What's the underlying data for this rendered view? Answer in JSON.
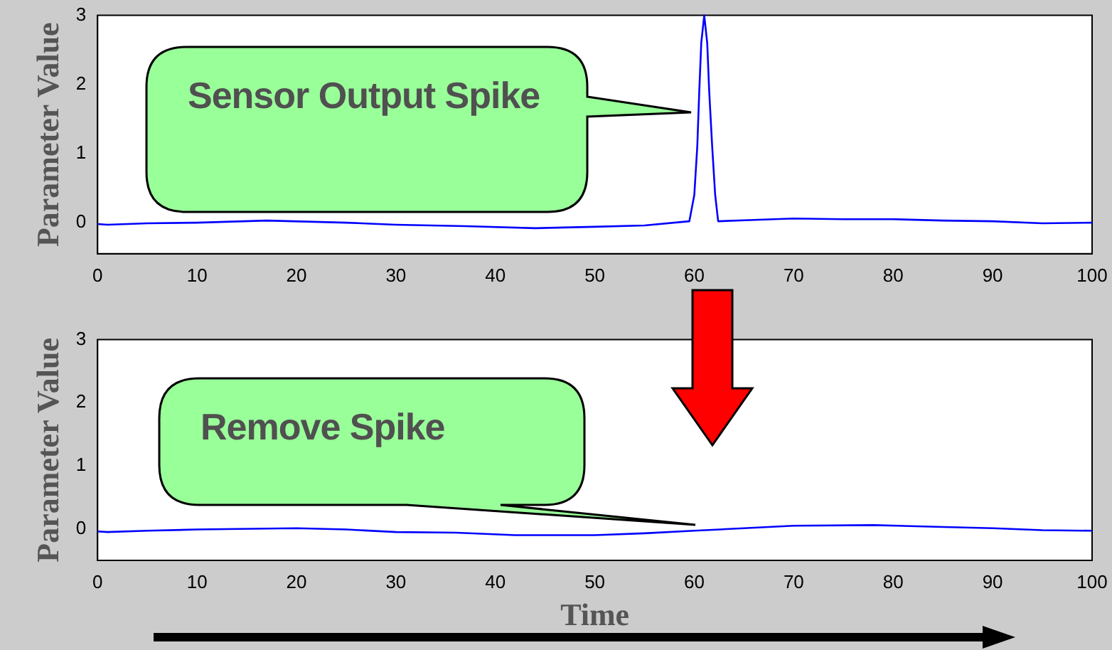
{
  "chart_data": [
    {
      "type": "line",
      "ylabel": "Parameter Value",
      "x": [
        0,
        1,
        5,
        10,
        17,
        25,
        30,
        37,
        44,
        50,
        55,
        59.5,
        60,
        60.3,
        60.5,
        60.7,
        61,
        61.3,
        61.5,
        61.8,
        62.1,
        62.4,
        66,
        70,
        75,
        80,
        85,
        90,
        95,
        100
      ],
      "series": [
        {
          "color": "#0000ff",
          "values": [
            -0.02,
            -0.03,
            -0.01,
            0,
            0.03,
            0,
            -0.03,
            -0.05,
            -0.08,
            -0.06,
            -0.04,
            0.02,
            0.4,
            1.1,
            1.9,
            2.6,
            3,
            2.6,
            1.9,
            1.1,
            0.4,
            0.02,
            0.04,
            0.06,
            0.05,
            0.05,
            0.03,
            0.02,
            -0.01,
            0
          ]
        }
      ],
      "xlim": [
        0,
        100
      ],
      "xticks": [
        0,
        10,
        20,
        30,
        40,
        50,
        60,
        70,
        80,
        90,
        100
      ],
      "ylim": [
        -0.45,
        3
      ],
      "yticks": [
        0,
        1,
        2,
        3
      ],
      "grid": false,
      "legend": false,
      "marker": "none",
      "line_style": "solid",
      "annotations": [
        "Sensor Output Spike"
      ]
    },
    {
      "type": "line",
      "ylabel": "Parameter Value",
      "xlabel": "Time",
      "x": [
        0,
        1,
        5,
        10,
        20,
        25,
        30,
        36,
        42,
        50,
        55,
        60,
        65,
        70,
        78,
        85,
        90,
        95,
        100
      ],
      "series": [
        {
          "color": "#0000ff",
          "values": [
            -0.04,
            -0.05,
            -0.03,
            -0.01,
            0.01,
            -0.01,
            -0.05,
            -0.06,
            -0.1,
            -0.1,
            -0.07,
            -0.03,
            0.01,
            0.05,
            0.06,
            0.03,
            0.01,
            -0.02,
            -0.03
          ]
        }
      ],
      "xlim": [
        0,
        100
      ],
      "xticks": [
        0,
        10,
        20,
        30,
        40,
        50,
        60,
        70,
        80,
        90,
        100
      ],
      "ylim": [
        -0.5,
        3
      ],
      "yticks": [
        0,
        1,
        2,
        3
      ],
      "grid": false,
      "legend": false,
      "marker": "none",
      "line_style": "solid",
      "annotations": [
        "Remove Spike"
      ]
    }
  ]
}
